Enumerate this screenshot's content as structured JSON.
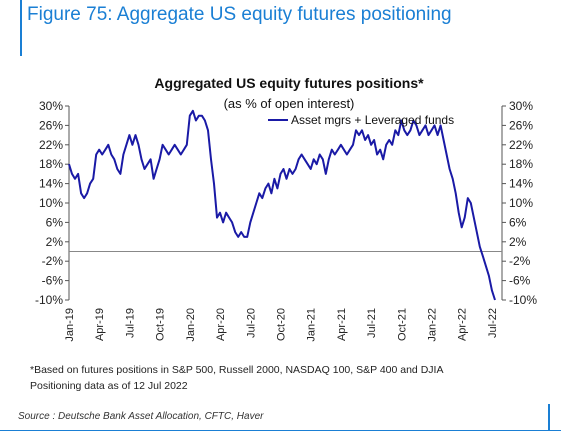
{
  "figure": {
    "title": "Figure 75: Aggregate US equity futures positioning",
    "footnote_lines": [
      "*Based on futures positions in S&P 500, Russell 2000, NASDAQ 100, S&P 400 and DJIA",
      "Positioning data as of 12 Jul 2022"
    ],
    "source": "Source : Deutsche Bank Asset Allocation, CFTC, Haver",
    "accent_color": "#1a7fd4"
  },
  "chart_data": {
    "type": "line",
    "title": "Aggregated US equity futures positions*",
    "subtitle": "(as % of open interest)",
    "xlabel": "",
    "ylabel": "",
    "ylim": [
      -10,
      30
    ],
    "yticks": [
      "30%",
      "26%",
      "22%",
      "18%",
      "14%",
      "10%",
      "6%",
      "2%",
      "-2%",
      "-6%",
      "-10%"
    ],
    "ytick_values": [
      30,
      26,
      22,
      18,
      14,
      10,
      6,
      2,
      -2,
      -6,
      -10
    ],
    "xticks": [
      "Jan-19",
      "Apr-19",
      "Jul-19",
      "Oct-19",
      "Jan-20",
      "Apr-20",
      "Jul-20",
      "Oct-20",
      "Jan-21",
      "Apr-21",
      "Jul-21",
      "Oct-21",
      "Jan-22",
      "Apr-22",
      "Jul-22"
    ],
    "xtick_positions": [
      0,
      3,
      6,
      9,
      12,
      15,
      18,
      21,
      24,
      27,
      30,
      33,
      36,
      39,
      42
    ],
    "grid": false,
    "legend_position": "top-right",
    "line_color": "#1a1aa6",
    "series": [
      {
        "name": "Asset mgrs + Leveraged funds",
        "x": [
          0,
          0.3,
          0.6,
          0.9,
          1.2,
          1.5,
          1.8,
          2.1,
          2.4,
          2.7,
          3.0,
          3.3,
          3.6,
          3.9,
          4.2,
          4.5,
          4.8,
          5.1,
          5.4,
          5.7,
          6.0,
          6.3,
          6.6,
          6.9,
          7.2,
          7.5,
          7.8,
          8.1,
          8.4,
          8.7,
          9.0,
          9.3,
          9.6,
          9.9,
          10.2,
          10.5,
          10.8,
          11.1,
          11.4,
          11.7,
          12.0,
          12.3,
          12.6,
          12.9,
          13.2,
          13.5,
          13.8,
          14.1,
          14.4,
          14.7,
          15.0,
          15.3,
          15.6,
          15.9,
          16.2,
          16.5,
          16.8,
          17.1,
          17.4,
          17.7,
          18.0,
          18.3,
          18.6,
          18.9,
          19.2,
          19.5,
          19.8,
          20.1,
          20.4,
          20.7,
          21.0,
          21.3,
          21.6,
          21.9,
          22.2,
          22.5,
          22.8,
          23.1,
          23.4,
          23.7,
          24.0,
          24.3,
          24.6,
          24.9,
          25.2,
          25.5,
          25.8,
          26.1,
          26.4,
          26.7,
          27.0,
          27.3,
          27.6,
          27.9,
          28.2,
          28.5,
          28.8,
          29.1,
          29.4,
          29.7,
          30.0,
          30.3,
          30.6,
          30.9,
          31.2,
          31.5,
          31.8,
          32.1,
          32.4,
          32.7,
          33.0,
          33.3,
          33.6,
          33.9,
          34.2,
          34.5,
          34.8,
          35.1,
          35.4,
          35.7,
          36.0,
          36.3,
          36.6,
          36.9,
          37.2,
          37.5,
          37.8,
          38.1,
          38.4,
          38.7,
          39.0,
          39.3,
          39.6,
          39.9,
          40.2,
          40.5,
          40.8,
          41.1,
          41.4,
          41.7,
          42.0,
          42.3
        ],
        "values": [
          18,
          16,
          15,
          16,
          12,
          11,
          12,
          14,
          15,
          20,
          21,
          20,
          21,
          22,
          20,
          19,
          17,
          16,
          20,
          22,
          24,
          22,
          24,
          22,
          19,
          17,
          18,
          19,
          15,
          17,
          19,
          22,
          21,
          20,
          21,
          22,
          21,
          20,
          21,
          22,
          28,
          29,
          27,
          28,
          28,
          27,
          25,
          19,
          14,
          7,
          8,
          6,
          8,
          7,
          6,
          4,
          3,
          4,
          3,
          3,
          6,
          8,
          10,
          12,
          11,
          13,
          14,
          12,
          15,
          13,
          16,
          17,
          15,
          17,
          16,
          17,
          19,
          20,
          19,
          18,
          17,
          19,
          18,
          20,
          19,
          16,
          19,
          21,
          20,
          21,
          22,
          21,
          20,
          21,
          22,
          25,
          24,
          25,
          23,
          24,
          22,
          23,
          20,
          21,
          19,
          22,
          23,
          22,
          25,
          24,
          27,
          25,
          24,
          25,
          27,
          26,
          24,
          25,
          26,
          24,
          25,
          26,
          24,
          26,
          23,
          20,
          17,
          15,
          12,
          8,
          5,
          7,
          11,
          10,
          7,
          4,
          1,
          -1,
          -3,
          -5,
          -8,
          -10
        ]
      }
    ]
  }
}
